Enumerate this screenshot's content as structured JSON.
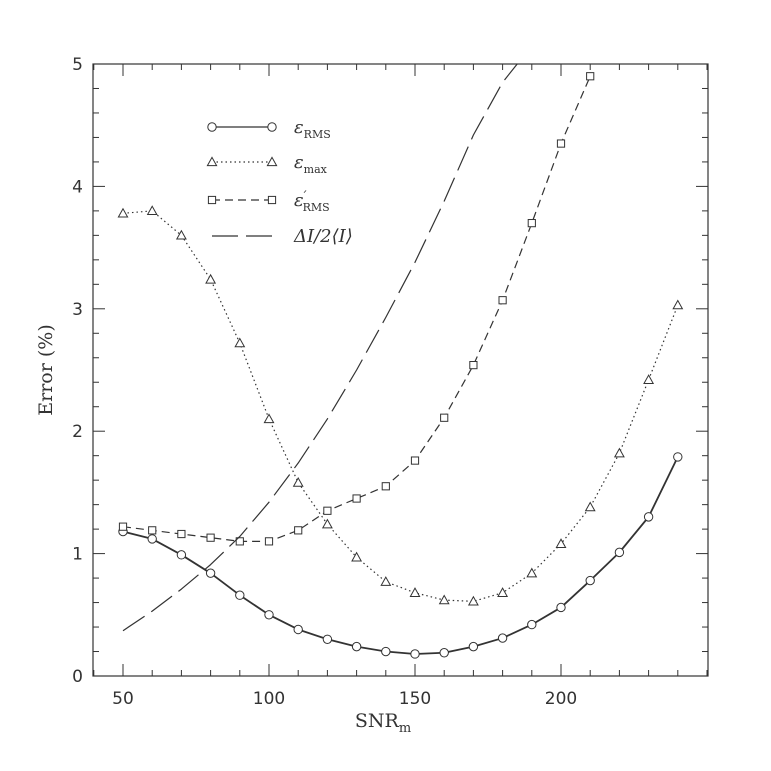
{
  "chart_data": {
    "type": "line",
    "title": "",
    "xlabel": "SNR",
    "xlabel_sub": "m",
    "ylabel": "Error (%)",
    "xlim": [
      40,
      250
    ],
    "ylim": [
      0,
      5
    ],
    "xticks": [
      50,
      100,
      150,
      200
    ],
    "yticks": [
      0,
      1,
      2,
      3,
      4,
      5
    ],
    "grid": false,
    "legend_position": "top-left",
    "series": [
      {
        "name": "ε",
        "name_sub": "RMS",
        "name_prime": "",
        "style": "solid",
        "marker": "circle",
        "x": [
          50,
          60,
          70,
          80,
          90,
          100,
          110,
          120,
          130,
          140,
          150,
          160,
          170,
          180,
          190,
          200,
          210,
          220,
          230,
          240
        ],
        "y": [
          1.18,
          1.12,
          0.99,
          0.84,
          0.66,
          0.5,
          0.38,
          0.3,
          0.24,
          0.2,
          0.18,
          0.19,
          0.24,
          0.31,
          0.42,
          0.56,
          0.78,
          1.01,
          1.3,
          1.79
        ]
      },
      {
        "name": "ε",
        "name_sub": "max",
        "name_prime": "",
        "style": "dotted",
        "marker": "triangle",
        "x": [
          50,
          60,
          70,
          80,
          90,
          100,
          110,
          120,
          130,
          140,
          150,
          160,
          170,
          180,
          190,
          200,
          210,
          220,
          230,
          240
        ],
        "y": [
          3.78,
          3.8,
          3.6,
          3.24,
          2.72,
          2.1,
          1.58,
          1.24,
          0.97,
          0.77,
          0.68,
          0.62,
          0.61,
          0.68,
          0.84,
          1.08,
          1.38,
          1.82,
          2.42,
          3.03
        ]
      },
      {
        "name": "ε",
        "name_sub": "RMS",
        "name_prime": "′",
        "style": "short-dash",
        "marker": "square",
        "x": [
          50,
          60,
          70,
          80,
          90,
          100,
          110,
          120,
          130,
          140,
          150,
          160,
          170,
          180,
          190,
          200,
          210
        ],
        "y": [
          1.22,
          1.19,
          1.16,
          1.13,
          1.1,
          1.1,
          1.19,
          1.35,
          1.45,
          1.55,
          1.76,
          2.11,
          2.54,
          3.07,
          3.7,
          4.35,
          4.9
        ]
      },
      {
        "name": "ΔI/2⟨I⟩",
        "name_sub": "",
        "name_prime": "",
        "style": "long-dash",
        "marker": "none",
        "x": [
          50,
          60,
          70,
          80,
          90,
          100,
          110,
          120,
          130,
          140,
          150,
          160,
          170,
          180,
          185
        ],
        "y": [
          0.37,
          0.53,
          0.71,
          0.91,
          1.14,
          1.42,
          1.74,
          2.1,
          2.5,
          2.93,
          3.38,
          3.88,
          4.42,
          4.85,
          5.0
        ]
      }
    ]
  }
}
